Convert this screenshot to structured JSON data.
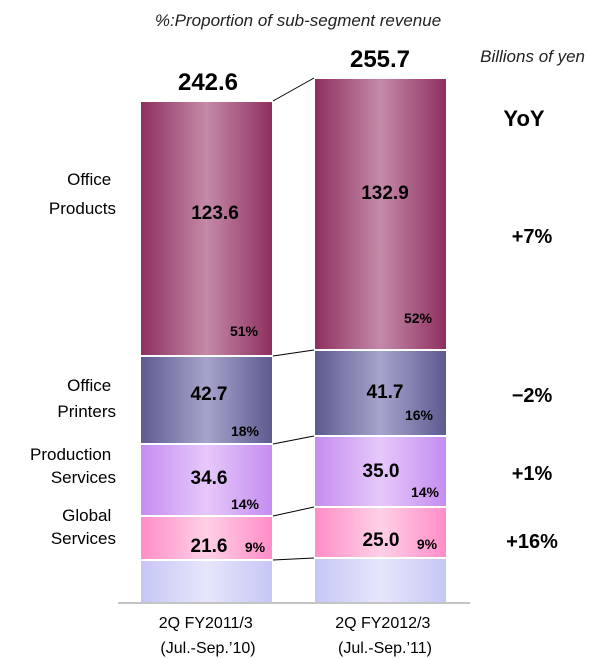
{
  "notes": {
    "proportion": "%:Proportion of sub-segment revenue",
    "unit": "Billions of yen",
    "yoy_header": "YoY"
  },
  "chart_data": {
    "type": "bar",
    "stacked": true,
    "categories": [
      [
        "2Q FY2011/3",
        "(Jul.-Sep.’10)"
      ],
      [
        "2Q FY2012/3",
        "(Jul.-Sep.’11)"
      ]
    ],
    "totals": [
      "242.6",
      "255.7"
    ],
    "series": [
      {
        "name": [
          "Global",
          "Services"
        ],
        "values": [
          "21.6",
          "25.0"
        ],
        "shares": [
          "9%",
          "9%"
        ],
        "yoy": "+16%",
        "color": "#ff9fcf"
      },
      {
        "name": [
          "Production",
          "Services"
        ],
        "values": [
          "34.6",
          "35.0"
        ],
        "shares": [
          "14%",
          "14%"
        ],
        "yoy": "+1%",
        "color": "#c98df0"
      },
      {
        "name": [
          "Office",
          "Printers"
        ],
        "values": [
          "42.7",
          "41.7"
        ],
        "shares": [
          "18%",
          "16%"
        ],
        "yoy": "−2%",
        "color": "#6d6a9e"
      },
      {
        "name": [
          "Office",
          "Products"
        ],
        "values": [
          "123.6",
          "132.9"
        ],
        "shares": [
          "51%",
          "52%"
        ],
        "yoy": "+7%",
        "color": "#a04a78"
      }
    ],
    "remainder_color": "#ccccf7"
  }
}
